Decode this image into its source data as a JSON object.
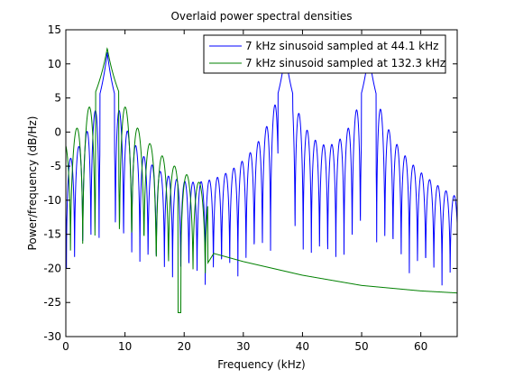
{
  "window": {
    "background": "#ffffff"
  },
  "chart_data": {
    "type": "line",
    "title": "Overlaid power spectral densities",
    "xlabel": "Frequency (kHz)",
    "ylabel": "Power/frequency (dB/Hz)",
    "xlim": [
      0,
      66.15
    ],
    "ylim": [
      -30,
      15
    ],
    "xticks": [
      0,
      10,
      20,
      30,
      40,
      50,
      60
    ],
    "yticks": [
      -30,
      -25,
      -20,
      -15,
      -10,
      -5,
      0,
      5,
      10,
      15
    ],
    "grid": false,
    "legend_position": "top-right",
    "series": [
      {
        "name": "7 kHz sinusoid sampled at 44.1 kHz",
        "color": "#0000ff",
        "main_lobes": [
          {
            "center": 7.0,
            "peak": 11.7
          },
          {
            "center": 37.1,
            "peak": 11.7
          },
          {
            "center": 51.2,
            "peak": 11.7
          }
        ],
        "sidelobe_spacing": 1.38,
        "floor": -23.5,
        "trough_min": -24.5
      },
      {
        "name": "7 kHz sinusoid sampled at 132.3 kHz",
        "color": "#008000",
        "main_lobes": [
          {
            "center": 7.0,
            "peak": 12.3
          }
        ],
        "sidelobe_spacing": 2.07,
        "oscillation_end": 24.0,
        "tail": [
          [
            24,
            -19.2
          ],
          [
            25,
            -17.8
          ],
          [
            30,
            -19.0
          ],
          [
            40,
            -21.0
          ],
          [
            50,
            -22.5
          ],
          [
            60,
            -23.3
          ],
          [
            66.15,
            -23.6
          ]
        ],
        "deep_null": {
          "x": 19.2,
          "y": -26.5
        }
      }
    ]
  }
}
